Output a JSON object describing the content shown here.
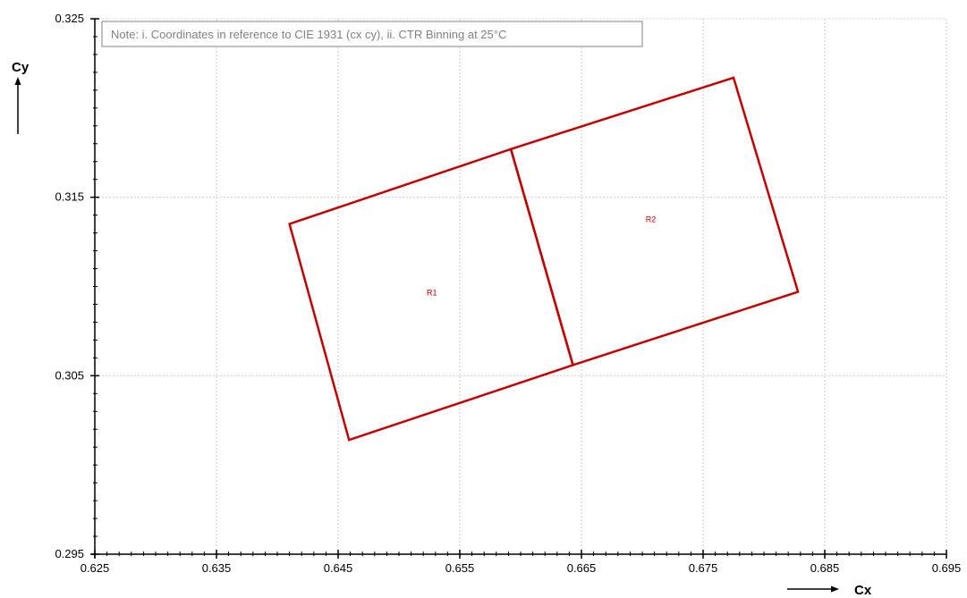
{
  "chart_data": {
    "type": "scatter",
    "xlabel": "Cx",
    "ylabel": "Cy",
    "xlim": [
      0.625,
      0.695
    ],
    "ylim": [
      0.295,
      0.325
    ],
    "x_ticks": [
      0.625,
      0.635,
      0.645,
      0.655,
      0.665,
      0.675,
      0.685,
      0.695
    ],
    "y_ticks": [
      0.295,
      0.305,
      0.315,
      0.325
    ],
    "x_tick_labels": [
      "0.625",
      "0.635",
      "0.645",
      "0.655",
      "0.665",
      "0.675",
      "0.685",
      "0.695"
    ],
    "y_tick_labels": [
      "0.295",
      "0.305",
      "0.315",
      "0.325"
    ],
    "grid": true,
    "annotation": "Note: i. Coordinates in reference to CIE 1931 (cx cy), ii. CTR Binning at 25°C",
    "series": [
      {
        "name": "R1",
        "points": [
          [
            0.641,
            0.3135
          ],
          [
            0.6592,
            0.3177
          ],
          [
            0.6643,
            0.3056
          ],
          [
            0.6459,
            0.3014
          ]
        ],
        "label_at": [
          0.6527,
          0.3095
        ]
      },
      {
        "name": "R2",
        "points": [
          [
            0.6592,
            0.3177
          ],
          [
            0.6775,
            0.3217
          ],
          [
            0.6828,
            0.3097
          ],
          [
            0.6643,
            0.3056
          ]
        ],
        "label_at": [
          0.6707,
          0.3136
        ]
      }
    ],
    "colors": {
      "region": "#c00000",
      "grid": "#d0d0d0",
      "axis": "#000000",
      "note_border": "#808080",
      "note_text": "#808080"
    }
  }
}
